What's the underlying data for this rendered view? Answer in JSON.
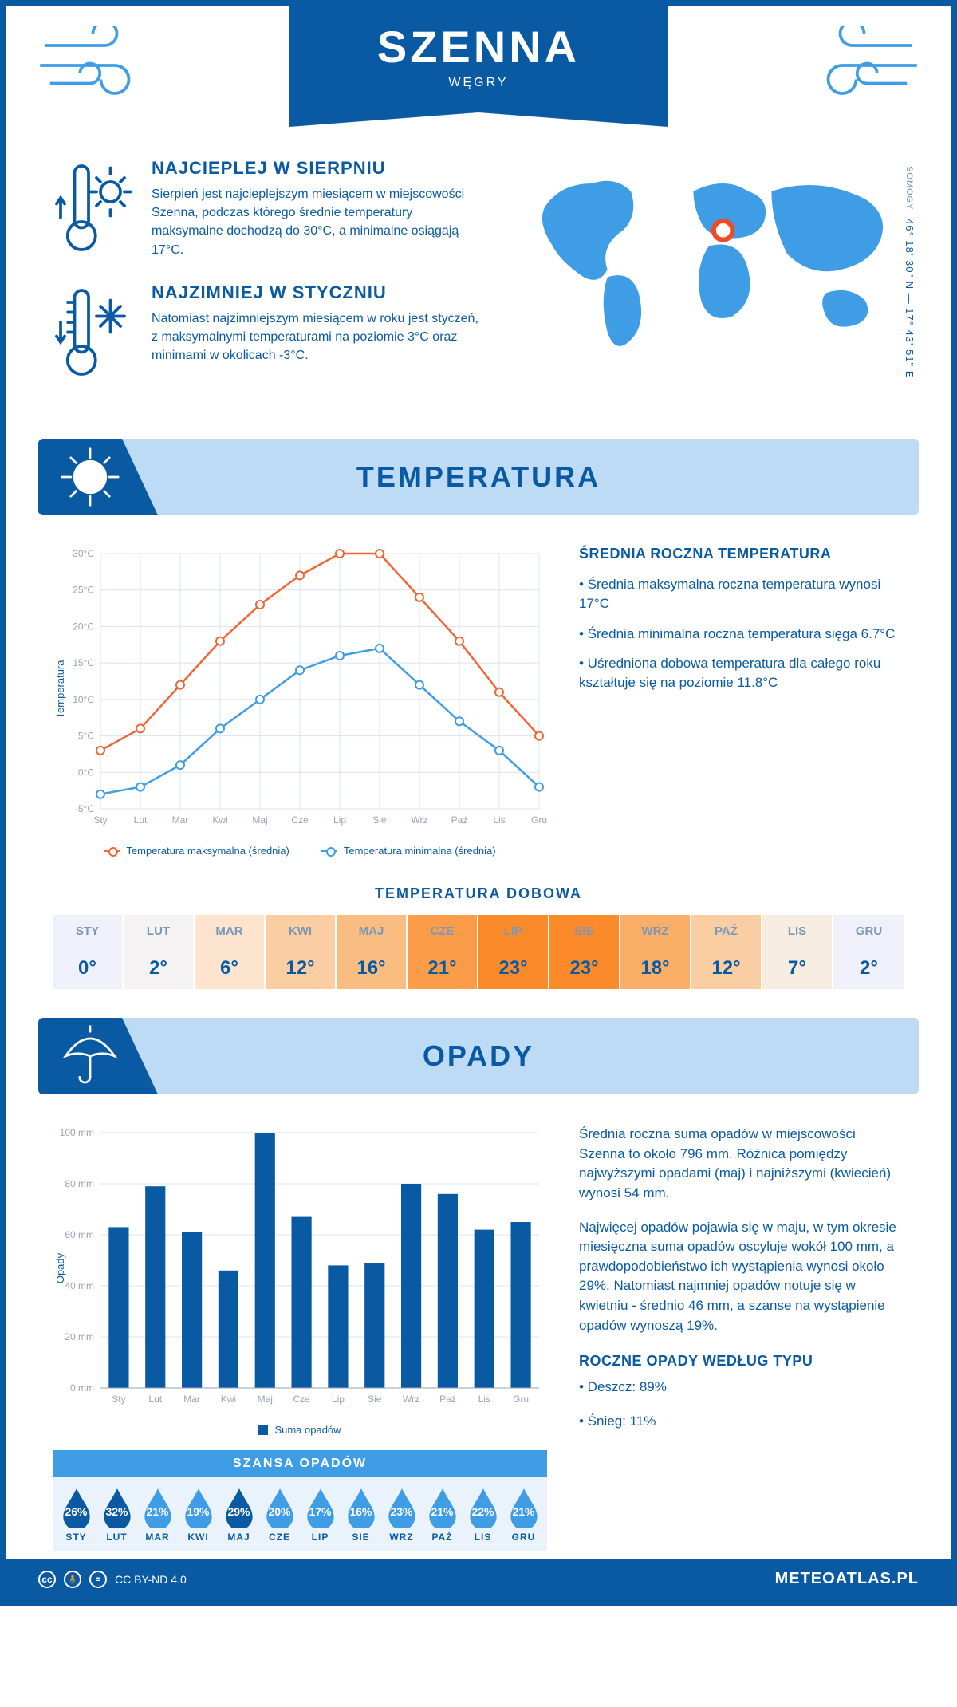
{
  "header": {
    "title": "SZENNA",
    "country": "WĘGRY"
  },
  "location": {
    "region": "SOMOGY",
    "coords": "46° 18' 30\" N — 17° 43' 51\" E",
    "marker_color": "#f04a24"
  },
  "colors": {
    "primary": "#0a5aa3",
    "light_blue": "#3f9de6",
    "pale_blue": "#bedbf6",
    "grid": "#dbe3f1",
    "max_line": "#f26535",
    "min_line": "#3f9de6"
  },
  "info_blocks": {
    "hot": {
      "title": "NAJCIEPLEJ W SIERPNIU",
      "text": "Sierpień jest najcieplejszym miesiącem w miejscowości Szenna, podczas którego średnie temperatury maksymalne dochodzą do 30°C, a minimalne osiągają 17°C."
    },
    "cold": {
      "title": "NAJZIMNIEJ W STYCZNIU",
      "text": "Natomiast najzimniejszym miesiącem w roku jest styczeń, z maksymalnymi temperaturami na poziomie 3°C oraz minimami w okolicach -3°C."
    }
  },
  "sections": {
    "temperature_title": "TEMPERATURA",
    "precip_title": "OPADY"
  },
  "temperature": {
    "chart": {
      "type": "line",
      "months": [
        "Sty",
        "Lut",
        "Mar",
        "Kwi",
        "Maj",
        "Cze",
        "Lip",
        "Sie",
        "Wrz",
        "Paź",
        "Lis",
        "Gru"
      ],
      "y_axis_label": "Temperatura",
      "ylim": [
        -5,
        30
      ],
      "ytick_step": 5,
      "ytick_suffix": "°C",
      "series": {
        "max": {
          "label": "Temperatura maksymalna (średnia)",
          "color": "#f26535",
          "values": [
            3,
            6,
            12,
            18,
            23,
            27,
            30,
            30,
            24,
            18,
            11,
            5
          ]
        },
        "min": {
          "label": "Temperatura minimalna (średnia)",
          "color": "#3f9de6",
          "values": [
            -3,
            -2,
            1,
            6,
            10,
            14,
            16,
            17,
            12,
            7,
            3,
            -2
          ]
        }
      },
      "background": "#ffffff",
      "grid_color": "#dbe3f1",
      "line_width": 2.5,
      "marker_size": 5
    },
    "side": {
      "heading": "ŚREDNIA ROCZNA TEMPERATURA",
      "bullets": [
        "• Średnia maksymalna roczna temperatura wynosi 17°C",
        "• Średnia minimalna roczna temperatura sięga 6.7°C",
        "• Uśredniona dobowa temperatura dla całego roku kształtuje się na poziomie 11.8°C"
      ]
    },
    "daily": {
      "title": "TEMPERATURA DOBOWA",
      "months": [
        "STY",
        "LUT",
        "MAR",
        "KWI",
        "MAJ",
        "CZE",
        "LIP",
        "SIE",
        "WRZ",
        "PAŹ",
        "LIS",
        "GRU"
      ],
      "values": [
        "0°",
        "2°",
        "6°",
        "12°",
        "16°",
        "21°",
        "23°",
        "23°",
        "18°",
        "12°",
        "7°",
        "2°"
      ],
      "cell_colors": [
        "#eff0fa",
        "#f5f2f3",
        "#fce4cf",
        "#fbcda2",
        "#fabd81",
        "#fb9d48",
        "#fb8b2a",
        "#fb8b2a",
        "#fbae67",
        "#fbcda2",
        "#f7ece1",
        "#eff0fa"
      ]
    }
  },
  "precip": {
    "chart": {
      "type": "bar",
      "months": [
        "Sty",
        "Lut",
        "Mar",
        "Kwi",
        "Maj",
        "Cze",
        "Lip",
        "Sie",
        "Wrz",
        "Paź",
        "Lis",
        "Gru"
      ],
      "legend_label": "Suma opadów",
      "y_axis_label": "Opady",
      "ylim": [
        0,
        100
      ],
      "ytick_step": 20,
      "ytick_suffix": " mm",
      "bar_color": "#0a5aa3",
      "bar_width": 0.55,
      "grid_color": "#dbe3f1",
      "values": [
        63,
        79,
        61,
        46,
        100,
        67,
        48,
        49,
        80,
        76,
        62,
        65
      ]
    },
    "text": {
      "p1": "Średnia roczna suma opadów w miejscowości Szenna to około 796 mm. Różnica pomiędzy najwyższymi opadami (maj) i najniższymi (kwiecień) wynosi 54 mm.",
      "p2": "Najwięcej opadów pojawia się w maju, w tym okresie miesięczna suma opadów oscyluje wokół 100 mm, a prawdopodobieństwo ich wystąpienia wynosi około 29%. Natomiast najmniej opadów notuje się w kwietniu - średnio 46 mm, a szanse na wystąpienie opadów wynoszą 19%.",
      "type_heading": "ROCZNE OPADY WEDŁUG TYPU",
      "type_bullets": [
        "• Deszcz: 89%",
        "• Śnieg: 11%"
      ]
    },
    "chance": {
      "title": "SZANSA OPADÓW",
      "months": [
        "STY",
        "LUT",
        "MAR",
        "KWI",
        "MAJ",
        "CZE",
        "LIP",
        "SIE",
        "WRZ",
        "PAŹ",
        "LIS",
        "GRU"
      ],
      "values": [
        "26%",
        "32%",
        "21%",
        "19%",
        "29%",
        "20%",
        "17%",
        "16%",
        "23%",
        "21%",
        "22%",
        "21%"
      ],
      "drop_colors": [
        "#0a5aa3",
        "#0a5aa3",
        "#3f9de6",
        "#3f9de6",
        "#0a5aa3",
        "#3f9de6",
        "#3f9de6",
        "#3f9de6",
        "#3f9de6",
        "#3f9de6",
        "#3f9de6",
        "#3f9de6"
      ]
    }
  },
  "footer": {
    "license": "CC BY-ND 4.0",
    "brand": "METEOATLAS.PL"
  }
}
